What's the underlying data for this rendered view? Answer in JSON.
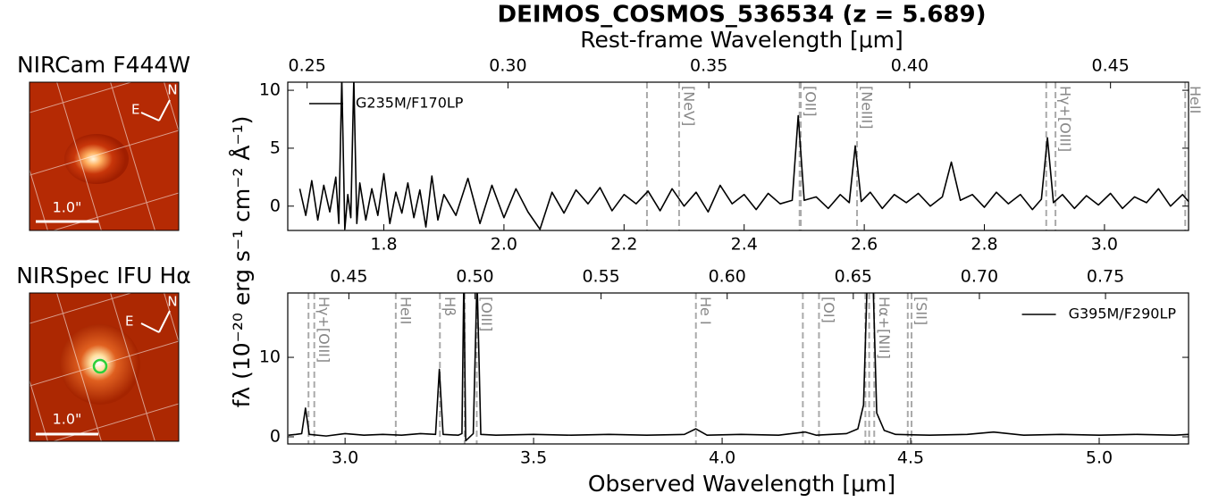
{
  "title": "DEIMOS_COSMOS_536534 (z = 5.689)",
  "redshift": 5.689,
  "top_xlabel": "Rest-frame Wavelength [μm]",
  "xlabel": "Observed Wavelength [μm]",
  "ylabel": "fλ (10⁻²⁰ erg s⁻¹ cm⁻² Å⁻¹)",
  "images": [
    {
      "label": "NIRCam F444W",
      "scale": "1.0\"",
      "east": "E",
      "north": "N"
    },
    {
      "label": "NIRSpec IFU Hα",
      "scale": "1.0\"",
      "east": "E",
      "north": "N"
    }
  ],
  "chart_data": [
    {
      "type": "line",
      "x": [
        1.66,
        1.67,
        1.68,
        1.69,
        1.7,
        1.71,
        1.72,
        1.725,
        1.73,
        1.735,
        1.74,
        1.745,
        1.75,
        1.755,
        1.76,
        1.77,
        1.78,
        1.79,
        1.8,
        1.81,
        1.82,
        1.83,
        1.84,
        1.85,
        1.86,
        1.87,
        1.88,
        1.89,
        1.9,
        1.92,
        1.94,
        1.96,
        1.98,
        2.0,
        2.02,
        2.04,
        2.06,
        2.08,
        2.1,
        2.12,
        2.14,
        2.16,
        2.18,
        2.2,
        2.22,
        2.24,
        2.26,
        2.28,
        2.3,
        2.32,
        2.34,
        2.36,
        2.38,
        2.4,
        2.42,
        2.44,
        2.46,
        2.48,
        2.49,
        2.5,
        2.52,
        2.54,
        2.56,
        2.575,
        2.585,
        2.595,
        2.61,
        2.63,
        2.65,
        2.67,
        2.69,
        2.71,
        2.73,
        2.745,
        2.76,
        2.78,
        2.8,
        2.82,
        2.84,
        2.86,
        2.88,
        2.895,
        2.905,
        2.915,
        2.93,
        2.95,
        2.97,
        2.99,
        3.01,
        3.03,
        3.05,
        3.07,
        3.09,
        3.11,
        3.13,
        3.14
      ],
      "series": [
        {
          "name": "G235M/F170LP",
          "color": "#000000",
          "values": [
            1.5,
            -0.8,
            2.2,
            -1.2,
            1.8,
            -0.5,
            2.5,
            -1.5,
            11,
            -2,
            1.0,
            -1.0,
            11,
            -1.5,
            2.0,
            -1.2,
            1.5,
            -0.8,
            2.8,
            -1.5,
            1.2,
            -0.6,
            2.0,
            -1.0,
            1.4,
            -1.8,
            2.6,
            -1.2,
            1.0,
            -0.8,
            2.4,
            -1.5,
            1.8,
            -1.0,
            1.5,
            -0.5,
            -2.0,
            1.2,
            -0.6,
            1.4,
            0.2,
            1.6,
            -0.4,
            1.0,
            0.2,
            1.3,
            -0.4,
            1.5,
            0.0,
            1.2,
            -0.5,
            1.8,
            0.2,
            1.0,
            -0.3,
            1.1,
            0.2,
            0.5,
            7.8,
            0.5,
            0.8,
            -0.2,
            1.0,
            0.3,
            5.2,
            0.4,
            1.2,
            -0.2,
            1.0,
            0.3,
            1.1,
            0.0,
            0.8,
            3.8,
            0.5,
            1.0,
            -0.1,
            1.2,
            0.2,
            1.0,
            -0.3,
            0.6,
            5.9,
            0.3,
            1.0,
            -0.2,
            0.9,
            0.1,
            1.1,
            -0.2,
            0.8,
            0.3,
            1.5,
            0.0,
            1.0,
            0.4
          ]
        }
      ],
      "xlim": [
        1.64,
        3.14
      ],
      "ylim": [
        -2.1,
        10.7
      ],
      "xticks": [
        1.8,
        {
          "value": 2,
          "label": "2.0"
        },
        2.2,
        2.4,
        2.6,
        2.8,
        {
          "value": 3,
          "label": "3.0"
        }
      ],
      "yticks": [
        0,
        5,
        10
      ],
      "top_xticks": [
        0.25,
        {
          "value": 0.3,
          "label": "0.30"
        },
        0.35,
        {
          "value": 0.4,
          "label": "0.40"
        },
        0.45
      ],
      "lines": [
        {
          "label": "[NeV]",
          "rest": [
            0.3346,
            0.3426
          ]
        },
        {
          "label": "[OII]",
          "rest": [
            0.3726,
            0.3729
          ]
        },
        {
          "label": "[NeIII]",
          "rest": [
            0.3869
          ]
        },
        {
          "label": "Hγ+[OIII]",
          "rest": [
            0.434,
            0.4363
          ]
        },
        {
          "label": "HeII",
          "rest": [
            0.4686
          ]
        }
      ],
      "legend": "upper left"
    },
    {
      "type": "line",
      "x": [
        2.85,
        2.87,
        2.885,
        2.895,
        2.905,
        2.95,
        3.0,
        3.05,
        3.1,
        3.15,
        3.2,
        3.24,
        3.25,
        3.26,
        3.3,
        3.31,
        3.315,
        3.32,
        3.34,
        3.35,
        3.36,
        3.4,
        3.5,
        3.6,
        3.7,
        3.8,
        3.9,
        3.93,
        3.96,
        4.05,
        4.15,
        4.22,
        4.25,
        4.33,
        4.36,
        4.375,
        4.385,
        4.4,
        4.41,
        4.43,
        4.46,
        4.55,
        4.65,
        4.72,
        4.8,
        4.9,
        5.0,
        5.1,
        5.2,
        5.237
      ],
      "series": [
        {
          "name": "G395M/F290LP",
          "color": "#000000",
          "values": [
            0.2,
            0.3,
            0.4,
            3.6,
            0.3,
            0.1,
            0.4,
            0.2,
            0.3,
            0.2,
            0.4,
            0.3,
            8.5,
            0.3,
            0.2,
            0.4,
            20,
            -0.5,
            0.4,
            20,
            0.3,
            0.2,
            0.3,
            0.2,
            0.3,
            0.2,
            0.3,
            1.0,
            0.2,
            0.3,
            0.2,
            0.6,
            0.2,
            0.4,
            1.0,
            4.0,
            20,
            20,
            3.0,
            0.8,
            0.3,
            0.2,
            0.3,
            0.6,
            0.2,
            0.3,
            0.2,
            0.3,
            0.2,
            0.3
          ]
        }
      ],
      "xlim": [
        2.848,
        5.237
      ],
      "ylim": [
        -0.9,
        18.1
      ],
      "xticks": [
        {
          "value": 3,
          "label": "3.0"
        },
        3.5,
        {
          "value": 4,
          "label": "4.0"
        },
        4.5,
        {
          "value": 5,
          "label": "5.0"
        }
      ],
      "yticks": [
        0,
        10
      ],
      "top_xticks": [
        0.45,
        {
          "value": 0.5,
          "label": "0.50"
        },
        0.55,
        {
          "value": 0.6,
          "label": "0.60"
        },
        0.65,
        {
          "value": 0.7,
          "label": "0.70"
        },
        0.75
      ],
      "lines": [
        {
          "label": "Hγ+[OIII]",
          "rest": [
            0.434,
            0.4363
          ]
        },
        {
          "label": "HeII",
          "rest": [
            0.4686
          ]
        },
        {
          "label": "Hβ",
          "rest": [
            0.4861
          ]
        },
        {
          "label": "[OIII]",
          "rest": [
            0.4959,
            0.5007
          ]
        },
        {
          "label": "He I",
          "rest": [
            0.5876
          ]
        },
        {
          "label": "[OI]",
          "rest": [
            0.63,
            0.6364
          ]
        },
        {
          "label": "Hα+[NII]",
          "rest": [
            0.6548,
            0.6563,
            0.6583
          ]
        },
        {
          "label": "[SII]",
          "rest": [
            0.6716,
            0.6731
          ]
        }
      ],
      "legend": "upper right"
    }
  ]
}
